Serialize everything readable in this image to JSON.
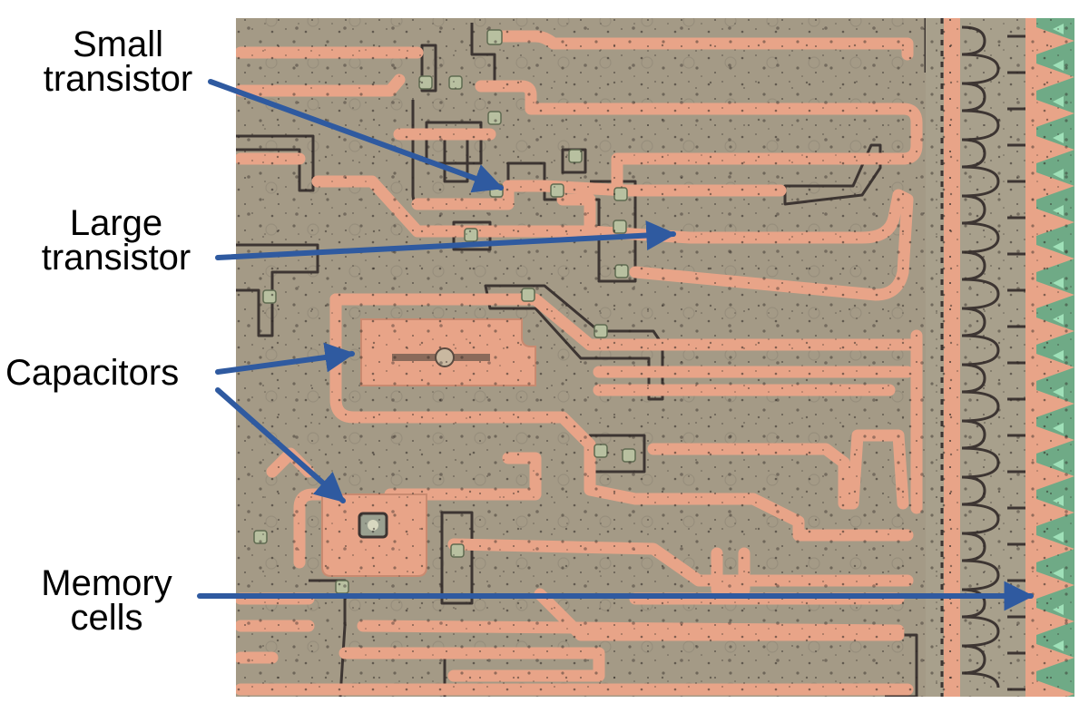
{
  "labels": {
    "small_transistor": {
      "line1": "Small",
      "line2": "transistor"
    },
    "large_transistor": {
      "line1": "Large",
      "line2": "transistor"
    },
    "capacitors": {
      "line1": "Capacitors"
    },
    "memory_cells": {
      "line1": "Memory",
      "line2": "cells"
    }
  },
  "colors": {
    "substrate": "#a49a86",
    "metal": "#e8a488",
    "metal_edge": "#c98a70",
    "oxide_edge": "#3d3532",
    "via": "#b8c0a0",
    "memory_green": "#5fbf8a",
    "arrow": "#2f5aa0",
    "text": "#000000"
  }
}
